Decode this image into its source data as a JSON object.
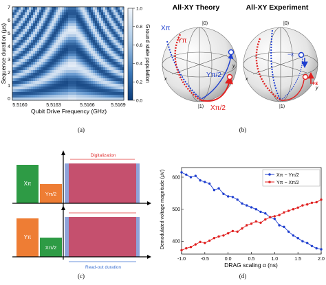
{
  "figure": {
    "captions": [
      "(a)",
      "(b)",
      "(c)",
      "(d)"
    ]
  },
  "panel_a": {
    "ylabel": "Sequence duration (μs)",
    "xlabel": "Qubit Drive Frequency (GHz)",
    "colorbar_label": "Ground state population",
    "colorbar_ticks": [
      "1.0",
      "0.8",
      "0.6",
      "0.4",
      "0.2",
      "0.0"
    ],
    "colors": {
      "high": "#f2f6fb",
      "low": "#0b3b78"
    }
  },
  "panel_b": {
    "title_left": "All-XY Theory",
    "title_right": "All-XY Experiment",
    "labels": {
      "zero": "|0⟩",
      "one": "|1⟩",
      "x": "x",
      "y": "y",
      "x_pi": "Xπ",
      "y_pi": "Yπ",
      "y_pi2": "Yπ/2",
      "x_pi2": "Xπ/2",
      "minus_eps": "−ε",
      "plus_eps": "+ε"
    },
    "colors": {
      "blue": "#1f3fcf",
      "red": "#e02020"
    }
  },
  "panel_c": {
    "top": {
      "pulse1": "Xπ",
      "pulse2": "Yπ/2"
    },
    "bottom": {
      "pulse1": "Yπ",
      "pulse2": "Xπ/2"
    },
    "digitalization_label": "Digitalization",
    "readout_label": "Read-out duration",
    "colors": {
      "green": "#2e9b45",
      "orange": "#ee7d34",
      "readout": "#c5506e",
      "edge": "#8fa3d9",
      "red_text": "#e03030",
      "blue_text": "#3a6fd0"
    }
  },
  "panel_d": {
    "ylabel": "Demodulated voltage magnitude (μV)",
    "xlabel": "DRAG scaling α (ns)",
    "legend": [
      "Xπ − Yπ/2",
      "Yπ − Xπ/2"
    ]
  },
  "chart_data": {
    "type": "line",
    "title": "",
    "xlabel": "DRAG scaling α (ns)",
    "ylabel": "Demodulated voltage magnitude (μV)",
    "xlim": [
      -1.0,
      2.0
    ],
    "ylim": [
      360,
      630
    ],
    "xticks": [
      "-1.0",
      "-0.5",
      "0.0",
      "0.5",
      "1.0",
      "1.5",
      "2.0"
    ],
    "yticks": [
      "400",
      "500",
      "600"
    ],
    "grid": false,
    "legend_position": "top-right",
    "x": [
      -1.0,
      -0.9,
      -0.8,
      -0.7,
      -0.6,
      -0.5,
      -0.4,
      -0.3,
      -0.2,
      -0.1,
      0.0,
      0.1,
      0.2,
      0.3,
      0.4,
      0.5,
      0.6,
      0.7,
      0.8,
      0.9,
      1.0,
      1.1,
      1.2,
      1.3,
      1.4,
      1.5,
      1.6,
      1.7,
      1.8,
      1.9,
      2.0
    ],
    "series": [
      {
        "name": "Xπ − Yπ/2",
        "color": "#1f3fcf",
        "values": [
          615,
          608,
          600,
          604,
          590,
          585,
          580,
          560,
          565,
          548,
          540,
          538,
          530,
          518,
          512,
          506,
          500,
          492,
          487,
          475,
          470,
          450,
          445,
          430,
          418,
          410,
          400,
          395,
          385,
          378,
          375
        ]
      },
      {
        "name": "Yπ − Xπ/2",
        "color": "#e02020",
        "values": [
          372,
          378,
          382,
          390,
          398,
          395,
          402,
          410,
          415,
          418,
          425,
          432,
          430,
          440,
          450,
          455,
          462,
          458,
          468,
          475,
          478,
          482,
          490,
          495,
          500,
          505,
          512,
          515,
          520,
          522,
          530
        ]
      }
    ]
  }
}
